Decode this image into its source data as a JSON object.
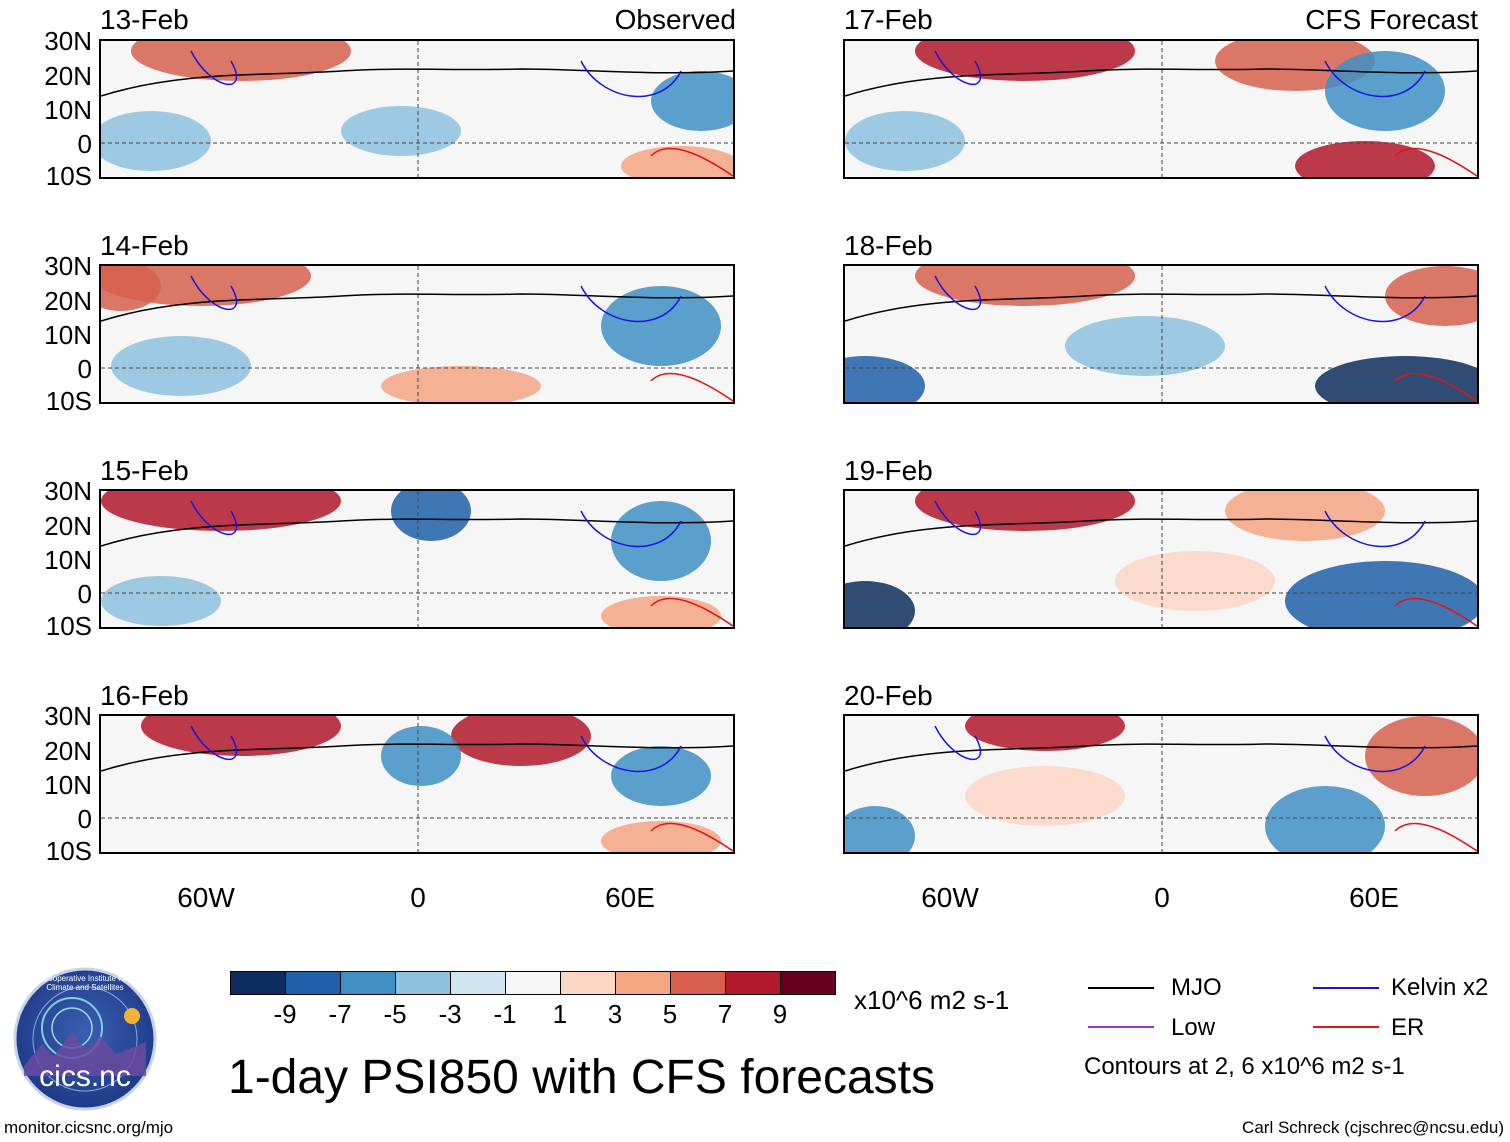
{
  "observed_label": "Observed",
  "forecast_label": "CFS Forecast",
  "observed_panels": [
    {
      "date": "13-Feb"
    },
    {
      "date": "14-Feb"
    },
    {
      "date": "15-Feb"
    },
    {
      "date": "16-Feb"
    }
  ],
  "forecast_panels": [
    {
      "date": "17-Feb"
    },
    {
      "date": "18-Feb"
    },
    {
      "date": "19-Feb"
    },
    {
      "date": "20-Feb"
    }
  ],
  "lat_labels": [
    "30N",
    "20N",
    "10N",
    "0",
    "10S"
  ],
  "lon_labels": [
    "60W",
    "0",
    "60E"
  ],
  "colorbar": {
    "labels": [
      "-9",
      "-7",
      "-5",
      "-3",
      "-1",
      "1",
      "3",
      "5",
      "7",
      "9"
    ],
    "colors": [
      "#0c2e5e",
      "#1f5fa8",
      "#3f8fc4",
      "#8dc2de",
      "#d1e5f0",
      "#f7f7f7",
      "#fcd7c4",
      "#f4a582",
      "#d6604d",
      "#b2182b",
      "#67001f"
    ],
    "units": "x10^6 m2 s-1"
  },
  "legend": {
    "mjo": "MJO",
    "kelvin": "Kelvin x2",
    "low": "Low",
    "er": "ER",
    "colors": {
      "mjo": "#000000",
      "kelvin": "#1515e0",
      "low": "#9b30d9",
      "er": "#e01515"
    },
    "note": "Contours at 2, 6 x10^6 m2 s-1"
  },
  "title": "1-day PSI850 with CFS forecasts",
  "logo_text": "cics.nc",
  "logo_ring_text": "Cooperative Institute for Climate and Satellites",
  "website": "monitor.cicsnc.org/mjo",
  "credit": "Carl Schreck (cjschrec@ncsu.edu)"
}
